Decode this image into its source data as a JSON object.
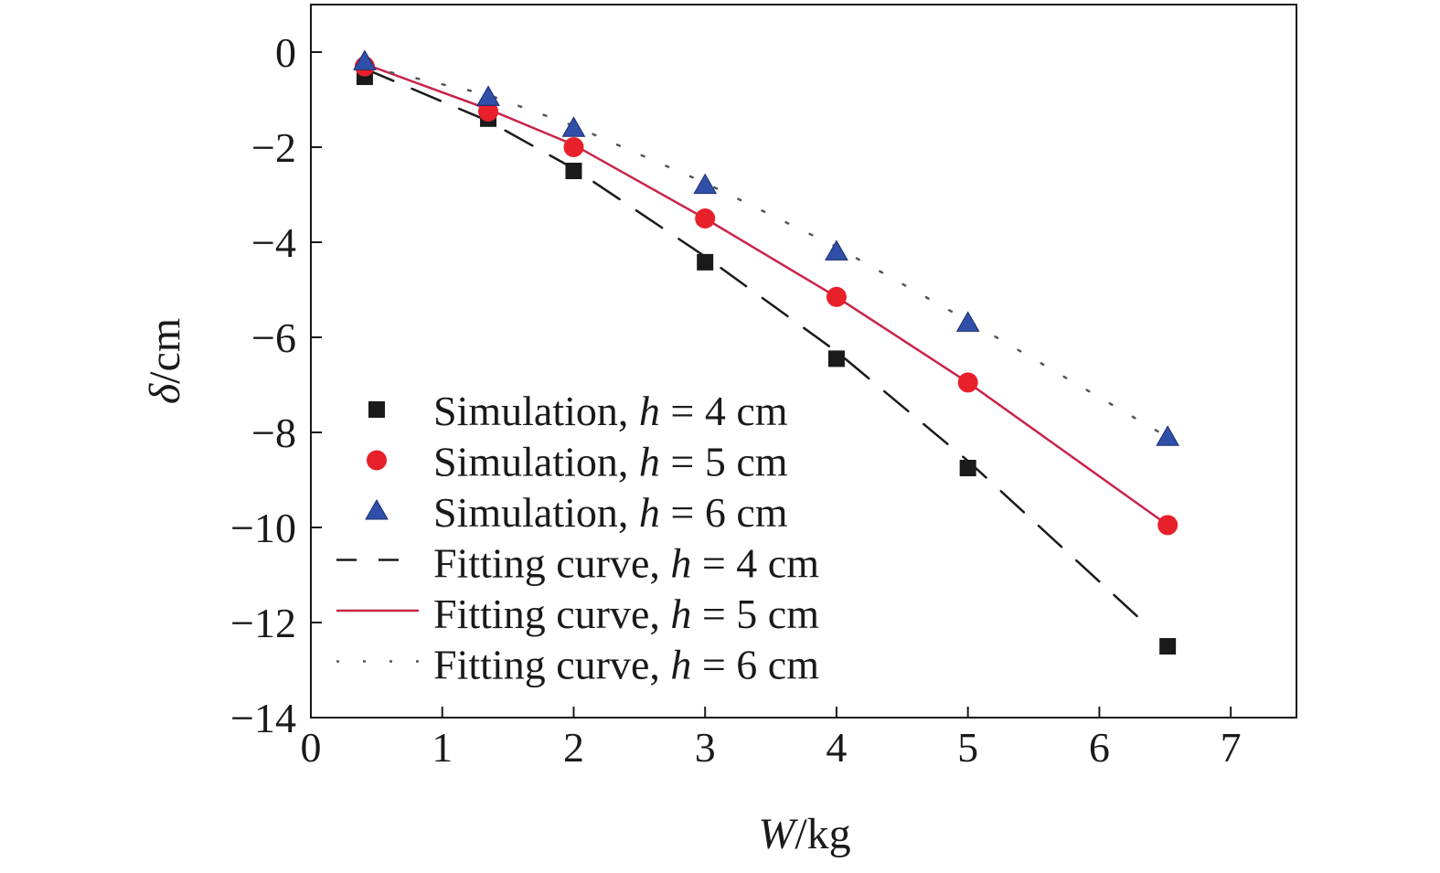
{
  "chart_data": {
    "type": "scatter",
    "xlabel_var": "W",
    "xlabel_unit": "/kg",
    "ylabel_var": "δ",
    "ylabel_unit": "/cm",
    "xlim": [
      0,
      7.5
    ],
    "ylim": [
      -14,
      1
    ],
    "x_ticks": [
      0,
      1,
      2,
      3,
      4,
      5,
      6,
      7
    ],
    "x_tick_labels": [
      "0",
      "1",
      "2",
      "3",
      "4",
      "5",
      "6",
      "7"
    ],
    "y_ticks": [
      0,
      -2,
      -4,
      -6,
      -8,
      -10,
      -12,
      -14
    ],
    "y_tick_labels": [
      "0",
      "−2",
      "−4",
      "−6",
      "−8",
      "−10",
      "−12",
      "−14"
    ],
    "grid": false,
    "legend_position": "bottom-left",
    "series": [
      {
        "name": "Simulation, h = 4 cm",
        "name_prefix": "Simulation, ",
        "name_var": "h",
        "name_suffix": " = 4 cm",
        "kind": "marker",
        "marker": "square",
        "color": "#1a1a1a",
        "x": [
          0.41,
          1.35,
          2.0,
          3.0,
          4.0,
          5.0,
          6.52
        ],
        "y": [
          -0.52,
          -1.4,
          -2.5,
          -4.42,
          -6.45,
          -8.75,
          -12.5
        ]
      },
      {
        "name": "Simulation, h = 5 cm",
        "name_prefix": "Simulation, ",
        "name_var": "h",
        "name_suffix": " = 5 cm",
        "kind": "marker",
        "marker": "circle",
        "color": "#e8202a",
        "x": [
          0.41,
          1.35,
          2.0,
          3.0,
          4.0,
          5.0,
          6.52
        ],
        "y": [
          -0.3,
          -1.25,
          -2.0,
          -3.5,
          -5.15,
          -6.95,
          -9.95
        ]
      },
      {
        "name": "Simulation, h = 6 cm",
        "name_prefix": "Simulation, ",
        "name_var": "h",
        "name_suffix": " = 6 cm",
        "kind": "marker",
        "marker": "triangle",
        "color": "#2f4fa8",
        "x": [
          0.41,
          1.35,
          2.0,
          3.0,
          4.0,
          5.0,
          6.52
        ],
        "y": [
          -0.2,
          -0.95,
          -1.6,
          -2.8,
          -4.2,
          -5.7,
          -8.1
        ]
      },
      {
        "name": "Fitting curve, h = 4 cm",
        "name_prefix": "Fitting curve, ",
        "name_var": "h",
        "name_suffix": " = 4 cm",
        "kind": "line",
        "dash": "dashed",
        "color": "#1a1a1a",
        "x": [
          0.41,
          1.35,
          2.0,
          3.0,
          4.0,
          5.0,
          6.3
        ],
        "y": [
          -0.35,
          -1.45,
          -2.45,
          -4.3,
          -6.3,
          -8.6,
          -11.9
        ]
      },
      {
        "name": "Fitting curve, h = 5 cm",
        "name_prefix": "Fitting curve, ",
        "name_var": "h",
        "name_suffix": " = 5 cm",
        "kind": "line",
        "dash": "solid",
        "color": "#c8234a",
        "x": [
          0.41,
          1.35,
          2.0,
          3.0,
          4.0,
          5.0,
          6.52
        ],
        "y": [
          -0.25,
          -1.2,
          -1.95,
          -3.5,
          -5.15,
          -6.95,
          -9.95
        ]
      },
      {
        "name": "Fitting curve, h = 6 cm",
        "name_prefix": "Fitting curve, ",
        "name_var": "h",
        "name_suffix": " = 6 cm",
        "kind": "line",
        "dash": "dotted",
        "color": "#555555",
        "x": [
          0.41,
          1.35,
          2.0,
          3.0,
          4.0,
          5.0,
          6.52
        ],
        "y": [
          -0.3,
          -0.9,
          -1.55,
          -2.75,
          -4.1,
          -5.65,
          -8.1
        ]
      }
    ]
  }
}
